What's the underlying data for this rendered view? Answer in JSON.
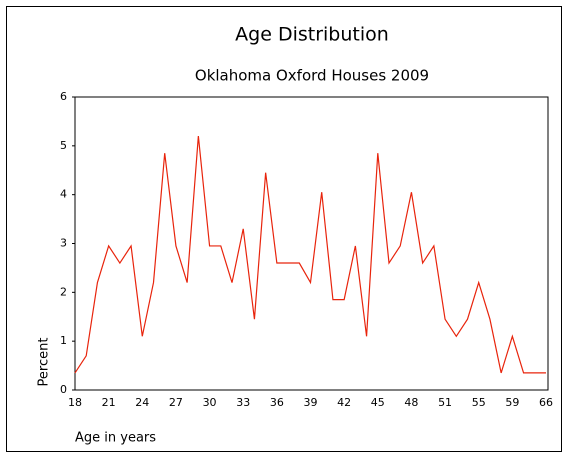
{
  "chart_data": {
    "type": "line",
    "title": "Age Distribution",
    "subtitle": "Oklahoma Oxford Houses 2009",
    "x_label": "Age in years",
    "y_label": "Percent",
    "categories": [
      "18",
      null,
      null,
      "21",
      null,
      null,
      "24",
      null,
      null,
      "27",
      null,
      null,
      "30",
      null,
      null,
      "33",
      null,
      null,
      "36",
      null,
      null,
      "39",
      null,
      null,
      "42",
      null,
      null,
      "45",
      null,
      null,
      "48",
      null,
      null,
      "51",
      null,
      null,
      "55",
      null,
      null,
      "59",
      null,
      null,
      "66"
    ],
    "series": [
      {
        "name": "Percent",
        "color": "#e8240c",
        "values": [
          0.35,
          0.7,
          2.2,
          2.95,
          2.6,
          2.95,
          1.1,
          2.2,
          4.85,
          2.95,
          2.2,
          5.2,
          2.95,
          2.95,
          2.2,
          3.3,
          1.45,
          4.45,
          2.6,
          2.6,
          2.6,
          2.2,
          4.05,
          1.85,
          1.85,
          2.95,
          1.1,
          4.85,
          2.6,
          2.95,
          4.05,
          2.6,
          2.95,
          1.45,
          1.1,
          1.45,
          2.2,
          1.45,
          0.35,
          1.1,
          0.35,
          0.35,
          0.35
        ]
      }
    ],
    "ylim": [
      0,
      6
    ],
    "yticks": [
      0,
      1,
      2,
      3,
      4,
      5,
      6
    ],
    "grid": false
  }
}
